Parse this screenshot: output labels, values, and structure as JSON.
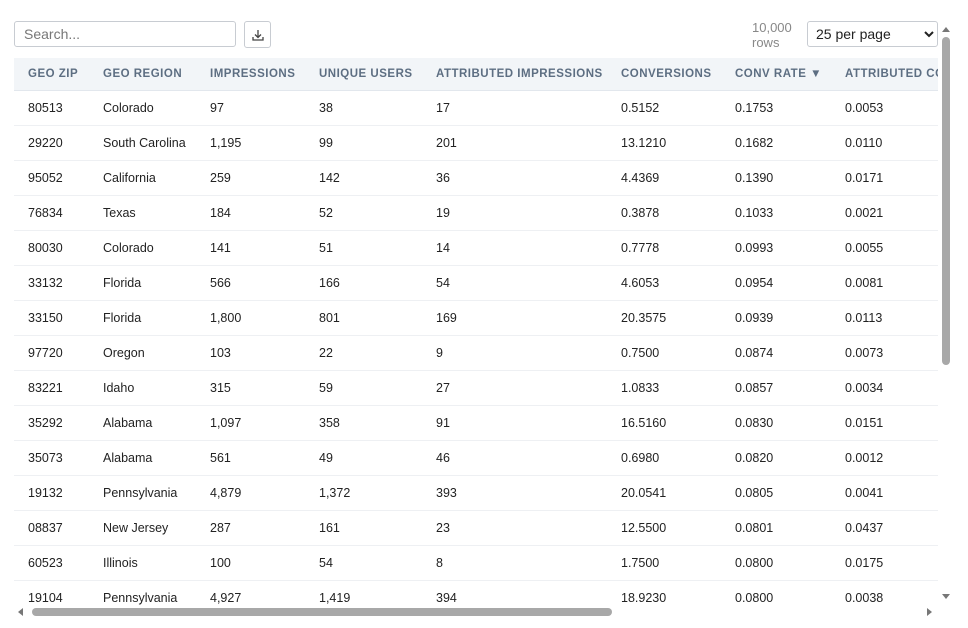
{
  "toolbar": {
    "search_placeholder": "Search...",
    "row_count": "10,000",
    "row_count_unit": "rows",
    "page_size": "25 per page"
  },
  "table": {
    "headers": [
      "GEO ZIP",
      "GEO REGION",
      "IMPRESSIONS",
      "UNIQUE USERS",
      "ATTRIBUTED IMPRESSIONS",
      "CONVERSIONS",
      "CONV RATE ▼",
      "ATTRIBUTED CO"
    ],
    "rows": [
      [
        "80513",
        "Colorado",
        "97",
        "38",
        "17",
        "0.5152",
        "0.1753",
        "0.0053"
      ],
      [
        "29220",
        "South Carolina",
        "1,195",
        "99",
        "201",
        "13.1210",
        "0.1682",
        "0.0110"
      ],
      [
        "95052",
        "California",
        "259",
        "142",
        "36",
        "4.4369",
        "0.1390",
        "0.0171"
      ],
      [
        "76834",
        "Texas",
        "184",
        "52",
        "19",
        "0.3878",
        "0.1033",
        "0.0021"
      ],
      [
        "80030",
        "Colorado",
        "141",
        "51",
        "14",
        "0.7778",
        "0.0993",
        "0.0055"
      ],
      [
        "33132",
        "Florida",
        "566",
        "166",
        "54",
        "4.6053",
        "0.0954",
        "0.0081"
      ],
      [
        "33150",
        "Florida",
        "1,800",
        "801",
        "169",
        "20.3575",
        "0.0939",
        "0.0113"
      ],
      [
        "97720",
        "Oregon",
        "103",
        "22",
        "9",
        "0.7500",
        "0.0874",
        "0.0073"
      ],
      [
        "83221",
        "Idaho",
        "315",
        "59",
        "27",
        "1.0833",
        "0.0857",
        "0.0034"
      ],
      [
        "35292",
        "Alabama",
        "1,097",
        "358",
        "91",
        "16.5160",
        "0.0830",
        "0.0151"
      ],
      [
        "35073",
        "Alabama",
        "561",
        "49",
        "46",
        "0.6980",
        "0.0820",
        "0.0012"
      ],
      [
        "19132",
        "Pennsylvania",
        "4,879",
        "1,372",
        "393",
        "20.0541",
        "0.0805",
        "0.0041"
      ],
      [
        "08837",
        "New Jersey",
        "287",
        "161",
        "23",
        "12.5500",
        "0.0801",
        "0.0437"
      ],
      [
        "60523",
        "Illinois",
        "100",
        "54",
        "8",
        "1.7500",
        "0.0800",
        "0.0175"
      ],
      [
        "19104",
        "Pennsylvania",
        "4,927",
        "1,419",
        "394",
        "18.9230",
        "0.0800",
        "0.0038"
      ]
    ]
  }
}
